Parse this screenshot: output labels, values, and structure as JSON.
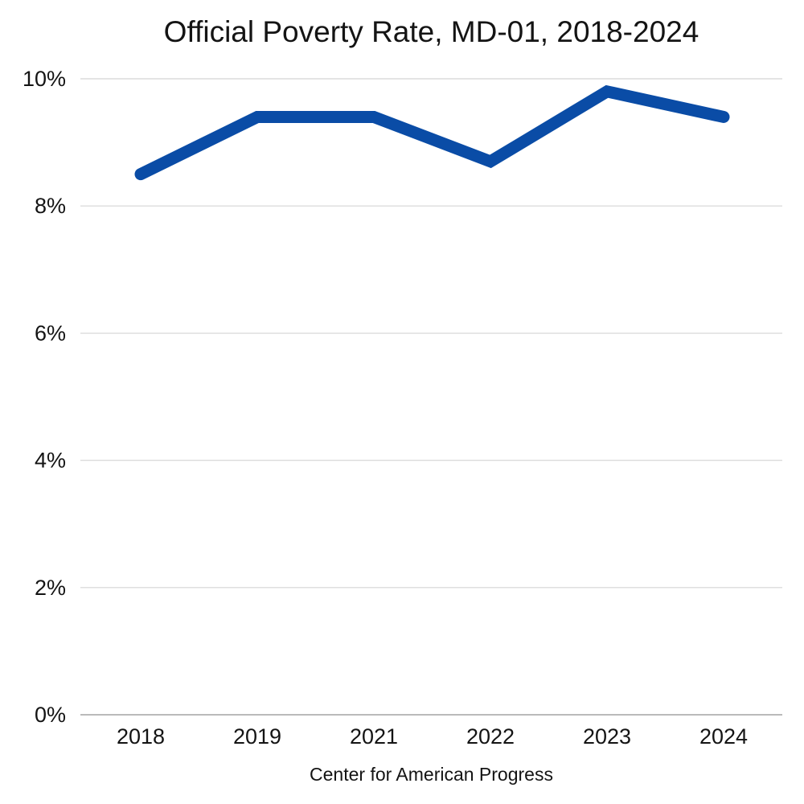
{
  "page": {
    "background": "#ffffff"
  },
  "header": {
    "title": "Official Poverty Rate, MD-01, 2018-2024"
  },
  "footer": {
    "caption": "Center for American Progress"
  },
  "chart_data": {
    "type": "line",
    "title": "Official Poverty Rate, MD-01, 2018-2024",
    "categories": [
      "2018",
      "2019",
      "2021",
      "2022",
      "2023",
      "2024"
    ],
    "series": [
      {
        "name": "Official Poverty Rate MD-01",
        "values": [
          8.5,
          9.4,
          9.4,
          8.7,
          9.8,
          9.4
        ]
      }
    ],
    "unit": "%",
    "xlabel": "",
    "ylabel": "",
    "ylim": [
      0,
      10
    ],
    "yticks": [
      0,
      2,
      4,
      6,
      8,
      10
    ],
    "ytick_labels": [
      "0%",
      "2%",
      "4%",
      "6%",
      "8%",
      "10%"
    ],
    "grid": true,
    "legend": "none",
    "caption": "Center for American Progress",
    "colors": {
      "line": "#0a4ca6",
      "gridline": "#dcdcdc",
      "axis_zero_line": "#a3a3a3",
      "text": "#141414"
    },
    "line_width": 15
  }
}
